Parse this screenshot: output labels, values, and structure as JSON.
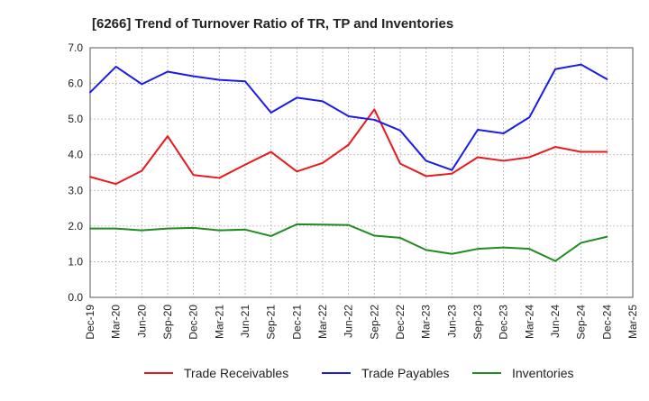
{
  "chart_data": {
    "type": "line",
    "title": "[6266]  Trend of Turnover Ratio of TR, TP and Inventories",
    "xlabel": "",
    "ylabel": "",
    "ylim": [
      0,
      7
    ],
    "yticks": [
      "0.0",
      "1.0",
      "2.0",
      "3.0",
      "4.0",
      "5.0",
      "6.0",
      "7.0"
    ],
    "grid": true,
    "legend_position": "bottom",
    "categories": [
      "Dec-19",
      "Mar-20",
      "Jun-20",
      "Sep-20",
      "Dec-20",
      "Mar-21",
      "Jun-21",
      "Sep-21",
      "Dec-21",
      "Mar-22",
      "Jun-22",
      "Sep-22",
      "Dec-22",
      "Mar-23",
      "Jun-23",
      "Sep-23",
      "Dec-23",
      "Mar-24",
      "Jun-24",
      "Sep-24",
      "Dec-24",
      "Mar-25"
    ],
    "series": [
      {
        "name": "Trade Receivables",
        "color": "#e8191c",
        "values": [
          3.38,
          3.18,
          3.55,
          4.52,
          3.43,
          3.35,
          3.72,
          4.08,
          3.53,
          3.77,
          4.28,
          5.27,
          3.75,
          3.4,
          3.47,
          3.93,
          3.83,
          3.93,
          4.22,
          4.08,
          4.08,
          null
        ]
      },
      {
        "name": "Trade Payables",
        "color": "#1c1ce8",
        "values": [
          5.75,
          6.47,
          5.98,
          6.33,
          6.2,
          6.1,
          6.06,
          5.18,
          5.6,
          5.5,
          5.08,
          4.98,
          4.68,
          3.83,
          3.57,
          4.7,
          4.6,
          5.05,
          6.4,
          6.53,
          6.12,
          null
        ]
      },
      {
        "name": "Inventories",
        "color": "#228b22",
        "values": [
          1.93,
          1.93,
          1.88,
          1.93,
          1.95,
          1.88,
          1.9,
          1.72,
          2.05,
          2.04,
          2.03,
          1.73,
          1.67,
          1.33,
          1.22,
          1.36,
          1.4,
          1.36,
          1.02,
          1.53,
          1.7,
          null
        ]
      }
    ]
  }
}
